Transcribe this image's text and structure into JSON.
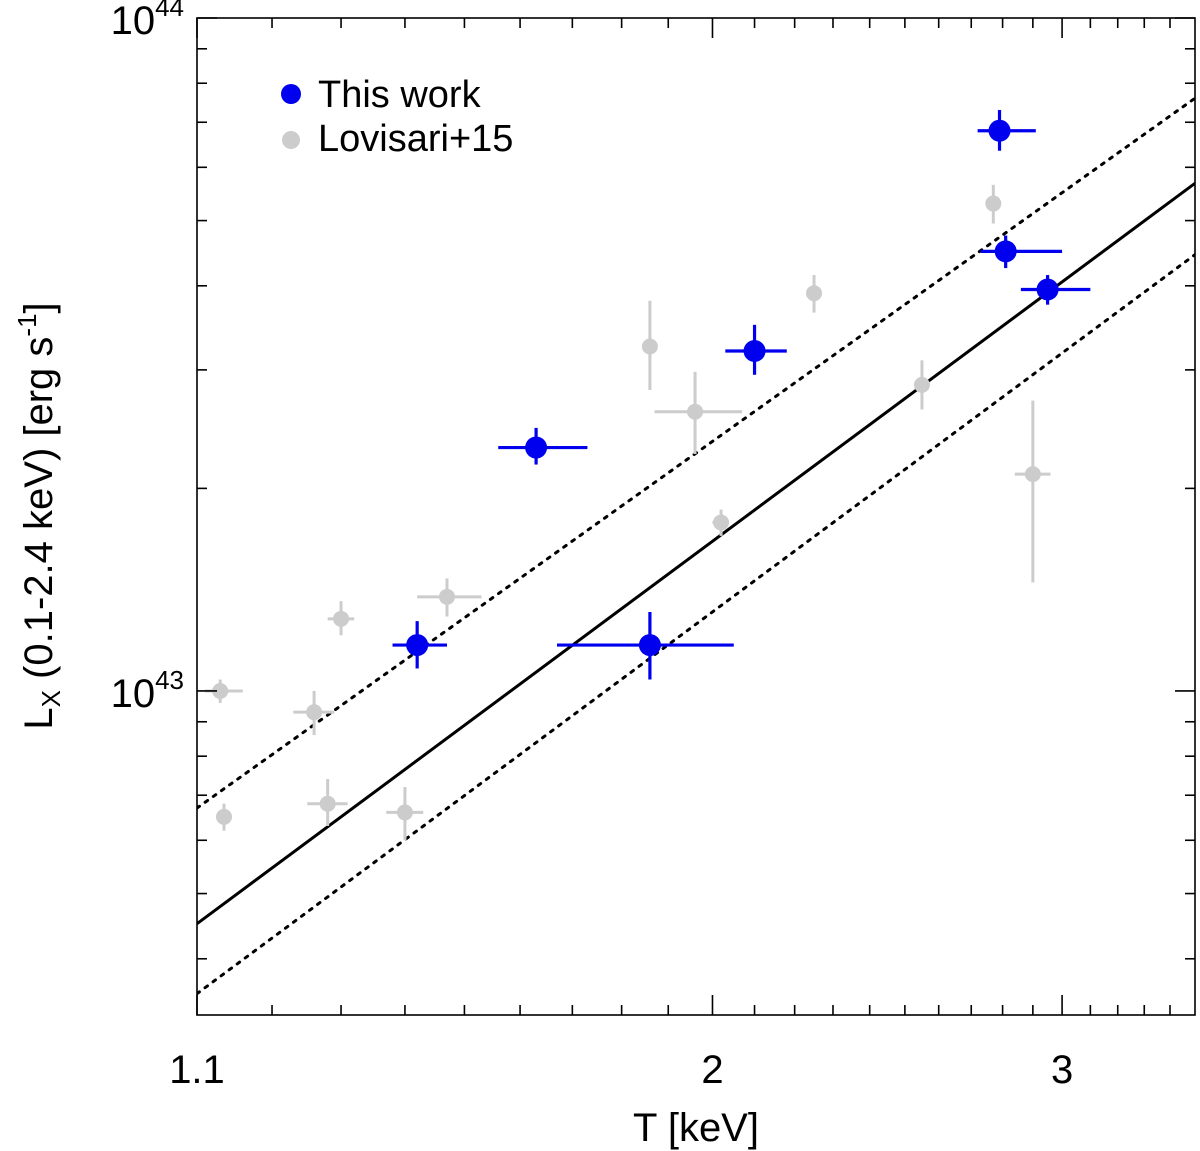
{
  "chart_data": {
    "type": "scatter",
    "x_scale": "log",
    "y_scale": "log",
    "xlim": [
      1.1,
      3.5
    ],
    "ylim": [
      3.3e+42,
      1e+44
    ],
    "xlabel": "T [keV]",
    "ylabel": {
      "prefix": "L",
      "sub": "X",
      "middle": " (0.1-2.4 keV) [erg s",
      "sup": "-1",
      "suffix": "]"
    },
    "x_tick_labels": [
      {
        "value": 1.1,
        "label": "1.1"
      },
      {
        "value": 2,
        "label": "2"
      },
      {
        "value": 3,
        "label": "3"
      }
    ],
    "x_minor_ticks": [
      1.2,
      1.3,
      1.4,
      1.5,
      1.6,
      1.7,
      1.8,
      1.9,
      2.1,
      2.2,
      2.3,
      2.4,
      2.5,
      2.6,
      2.7,
      2.8,
      2.9,
      3.1,
      3.2,
      3.3,
      3.4
    ],
    "y_tick_labels": [
      {
        "value": 1e+43,
        "base": "10",
        "exp": "43"
      },
      {
        "value": 1e+44,
        "base": "10",
        "exp": "44"
      }
    ],
    "y_minor_ticks": [
      4e+42,
      5e+42,
      6e+42,
      7e+42,
      8e+42,
      9e+42,
      2e+43,
      3e+43,
      4e+43,
      5e+43,
      6e+43,
      7e+43,
      8e+43,
      9e+43
    ],
    "legend": {
      "position": "top-left",
      "entries": [
        {
          "label": "This work",
          "color": "#0000ee"
        },
        {
          "label": "Lovisari+15",
          "color": "#cccccc"
        }
      ]
    },
    "fit_lines": [
      {
        "name": "best-fit",
        "style": "solid",
        "color": "#000000",
        "x": [
          1.1,
          3.5
        ],
        "y": [
          4.51e+42,
          5.68e+43
        ]
      },
      {
        "name": "scatter-upper",
        "style": "dotted",
        "color": "#000000",
        "x": [
          1.1,
          3.5
        ],
        "y": [
          6.7e+42,
          7.6e+43
        ]
      },
      {
        "name": "scatter-lower",
        "style": "dotted",
        "color": "#000000",
        "x": [
          1.1,
          3.5
        ],
        "y": [
          3.55e+42,
          4.45e+43
        ]
      }
    ],
    "series": [
      {
        "name": "This work",
        "color": "#0000ee",
        "points": [
          {
            "x": 1.42,
            "y": 1.17e+43,
            "xerr": [
              1.38,
              1.47
            ],
            "yerr": [
              1.08e+43,
              1.27e+43
            ]
          },
          {
            "x": 1.63,
            "y": 2.3e+43,
            "xerr": [
              1.56,
              1.73
            ],
            "yerr": [
              2.17e+43,
              2.46e+43
            ]
          },
          {
            "x": 1.86,
            "y": 1.17e+43,
            "xerr": [
              1.67,
              2.05
            ],
            "yerr": [
              1.04e+43,
              1.31e+43
            ]
          },
          {
            "x": 2.1,
            "y": 3.2e+43,
            "xerr": [
              2.03,
              2.18
            ],
            "yerr": [
              2.95e+43,
              3.5e+43
            ]
          },
          {
            "x": 2.79,
            "y": 6.8e+43,
            "xerr": [
              2.72,
              2.91
            ],
            "yerr": [
              6.35e+43,
              7.3e+43
            ]
          },
          {
            "x": 2.81,
            "y": 4.5e+43,
            "xerr": [
              2.73,
              3.0
            ],
            "yerr": [
              4.25e+43,
              4.75e+43
            ]
          },
          {
            "x": 2.95,
            "y": 3.95e+43,
            "xerr": [
              2.86,
              3.1
            ],
            "yerr": [
              3.75e+43,
              4.15e+43
            ]
          }
        ]
      },
      {
        "name": "Lovisari+15",
        "color": "#cccccc",
        "points": [
          {
            "x": 1.13,
            "y": 1e+43,
            "xerr": [
              1.11,
              1.16
            ],
            "yerr": [
              9.6e+42,
              1.04e+43
            ]
          },
          {
            "x": 1.135,
            "y": 6.5e+42,
            "xerr": [
              1.125,
              1.145
            ],
            "yerr": [
              6.2e+42,
              6.8e+42
            ]
          },
          {
            "x": 1.26,
            "y": 9.3e+42,
            "xerr": [
              1.23,
              1.29
            ],
            "yerr": [
              8.6e+42,
              1e+43
            ]
          },
          {
            "x": 1.28,
            "y": 6.8e+42,
            "xerr": [
              1.25,
              1.31
            ],
            "yerr": [
              6.3e+42,
              7.4e+42
            ]
          },
          {
            "x": 1.3,
            "y": 1.28e+43,
            "xerr": [
              1.28,
              1.32
            ],
            "yerr": [
              1.21e+43,
              1.36e+43
            ]
          },
          {
            "x": 1.4,
            "y": 6.6e+42,
            "xerr": [
              1.37,
              1.43
            ],
            "yerr": [
              6e+42,
              7.2e+42
            ]
          },
          {
            "x": 1.47,
            "y": 1.38e+43,
            "xerr": [
              1.42,
              1.53
            ],
            "yerr": [
              1.29e+43,
              1.47e+43
            ]
          },
          {
            "x": 1.86,
            "y": 3.25e+43,
            "xerr": [
              1.86,
              1.86
            ],
            "yerr": [
              2.8e+43,
              3.8e+43
            ]
          },
          {
            "x": 1.96,
            "y": 2.6e+43,
            "xerr": [
              1.87,
              2.07
            ],
            "yerr": [
              2.25e+43,
              2.98e+43
            ]
          },
          {
            "x": 2.02,
            "y": 1.78e+43,
            "xerr": [
              2.0,
              2.03
            ],
            "yerr": [
              1.7e+43,
              1.86e+43
            ]
          },
          {
            "x": 2.25,
            "y": 3.9e+43,
            "xerr": [
              2.24,
              2.26
            ],
            "yerr": [
              3.65e+43,
              4.15e+43
            ]
          },
          {
            "x": 2.55,
            "y": 2.85e+43,
            "xerr": [
              2.54,
              2.56
            ],
            "yerr": [
              2.62e+43,
              3.1e+43
            ]
          },
          {
            "x": 2.77,
            "y": 5.3e+43,
            "xerr": [
              2.76,
              2.78
            ],
            "yerr": [
              4.95e+43,
              5.65e+43
            ]
          },
          {
            "x": 2.9,
            "y": 2.1e+43,
            "xerr": [
              2.84,
              2.96
            ],
            "yerr": [
              1.45e+43,
              2.7e+43
            ]
          }
        ]
      }
    ]
  }
}
